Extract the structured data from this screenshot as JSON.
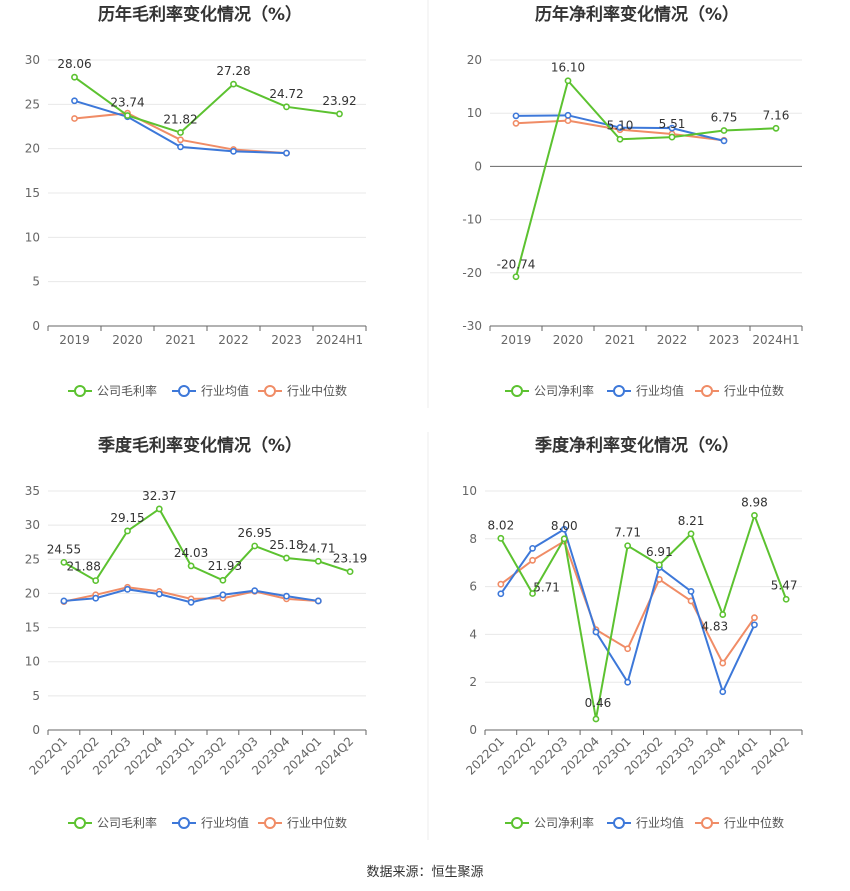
{
  "source": "数据来源：恒生聚源",
  "colors": {
    "company": "#5cc230",
    "avg": "#3d78d9",
    "median": "#f08c66"
  },
  "chart_data": [
    {
      "type": "line",
      "title": "历年毛利率变化情况（%）",
      "categories": [
        "2019",
        "2020",
        "2021",
        "2022",
        "2023",
        "2024H1"
      ],
      "ylim": [
        0,
        30
      ],
      "yticks": [
        0,
        5,
        10,
        15,
        20,
        25,
        30
      ],
      "legend": [
        "公司毛利率",
        "行业均值",
        "行业中位数"
      ],
      "series": [
        {
          "name": "公司毛利率",
          "values": [
            28.06,
            23.74,
            21.82,
            27.28,
            24.72,
            23.92
          ],
          "labels": [
            "28.06",
            "23.74",
            "21.82",
            "27.28",
            "24.72",
            "23.92"
          ]
        },
        {
          "name": "行业均值",
          "values": [
            25.4,
            23.6,
            20.2,
            19.7,
            19.5,
            null
          ]
        },
        {
          "name": "行业中位数",
          "values": [
            23.4,
            24.0,
            21.0,
            19.9,
            19.5,
            null
          ]
        }
      ]
    },
    {
      "type": "line",
      "title": "历年净利率变化情况（%）",
      "categories": [
        "2019",
        "2020",
        "2021",
        "2022",
        "2023",
        "2024H1"
      ],
      "ylim": [
        -30,
        20
      ],
      "yticks": [
        -30,
        -20,
        -10,
        0,
        10,
        20
      ],
      "legend": [
        "公司净利率",
        "行业均值",
        "行业中位数"
      ],
      "series": [
        {
          "name": "公司净利率",
          "values": [
            -20.74,
            16.1,
            5.1,
            5.51,
            6.75,
            7.16
          ],
          "labels": [
            "-20.74",
            "16.10",
            "5.10",
            "5.51",
            "6.75",
            "7.16"
          ]
        },
        {
          "name": "行业均值",
          "values": [
            9.5,
            9.6,
            7.3,
            7.2,
            4.8,
            null
          ]
        },
        {
          "name": "行业中位数",
          "values": [
            8.1,
            8.6,
            6.9,
            6.1,
            4.9,
            null
          ]
        }
      ]
    },
    {
      "type": "line",
      "title": "季度毛利率变化情况（%）",
      "categories": [
        "2022Q1",
        "2022Q2",
        "2022Q3",
        "2022Q4",
        "2023Q1",
        "2023Q2",
        "2023Q3",
        "2023Q4",
        "2024Q1",
        "2024Q2"
      ],
      "ylim": [
        0,
        35
      ],
      "yticks": [
        0,
        5,
        10,
        15,
        20,
        25,
        30,
        35
      ],
      "legend": [
        "公司毛利率",
        "行业均值",
        "行业中位数"
      ],
      "series": [
        {
          "name": "公司毛利率",
          "values": [
            24.55,
            21.88,
            29.15,
            32.37,
            24.03,
            21.93,
            26.95,
            25.18,
            24.71,
            23.19
          ],
          "labels": [
            "24.55",
            "21.88",
            "29.15",
            "32.37",
            "24.03",
            "21.93",
            "26.95",
            "25.18",
            "24.71",
            "23.19"
          ]
        },
        {
          "name": "行业均值",
          "values": [
            18.9,
            19.3,
            20.6,
            19.9,
            18.7,
            19.8,
            20.4,
            19.6,
            18.9,
            null
          ]
        },
        {
          "name": "行业中位数",
          "values": [
            18.8,
            19.8,
            20.9,
            20.3,
            19.2,
            19.3,
            20.3,
            19.2,
            18.9,
            null
          ]
        }
      ]
    },
    {
      "type": "line",
      "title": "季度净利率变化情况（%）",
      "categories": [
        "2022Q1",
        "2022Q2",
        "2022Q3",
        "2022Q4",
        "2023Q1",
        "2023Q2",
        "2023Q3",
        "2023Q4",
        "2024Q1",
        "2024Q2"
      ],
      "ylim": [
        0,
        10
      ],
      "yticks": [
        0,
        2,
        4,
        6,
        8,
        10
      ],
      "legend": [
        "公司净利率",
        "行业均值",
        "行业中位数"
      ],
      "series": [
        {
          "name": "公司净利率",
          "values": [
            8.02,
            5.71,
            8.0,
            0.46,
            7.71,
            6.91,
            8.21,
            4.83,
            8.98,
            5.47
          ],
          "labels": [
            "8.02",
            "5.71",
            "8.00",
            "0.46",
            "7.71",
            "6.91",
            "8.21",
            "4.83",
            "8.98",
            "5.47"
          ]
        },
        {
          "name": "行业均值",
          "values": [
            5.7,
            7.6,
            8.4,
            4.1,
            2.0,
            6.8,
            5.8,
            1.6,
            4.4,
            null
          ]
        },
        {
          "name": "行业中位数",
          "values": [
            6.1,
            7.1,
            7.9,
            4.2,
            3.4,
            6.3,
            5.4,
            2.8,
            4.7,
            null
          ]
        }
      ]
    }
  ]
}
